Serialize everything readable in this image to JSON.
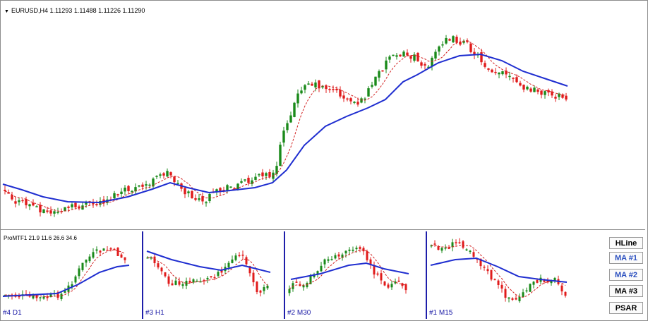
{
  "main_chart": {
    "title": "EURUSD,H4  1.11293 1.11488 1.11226 1.11290",
    "colors": {
      "bull": "#1a8a1a",
      "bear": "#e01b1b",
      "ma_fast": "#d22020",
      "ma_slow": "#1f2ed0"
    }
  },
  "sub_charts": {
    "indicator_label": "ProMTF1 21.9 11.6 26.6 34.6",
    "panes": [
      {
        "label": "#4 D1"
      },
      {
        "label": "#3 H1"
      },
      {
        "label": "#2 M30"
      },
      {
        "label": "#1 M15"
      }
    ]
  },
  "buttons": [
    {
      "label": "HLine",
      "color": "black"
    },
    {
      "label": "MA #1",
      "color": "blue"
    },
    {
      "label": "MA #2",
      "color": "blue"
    },
    {
      "label": "MA #3",
      "color": "black"
    },
    {
      "label": "PSAR",
      "color": "black"
    }
  ]
}
